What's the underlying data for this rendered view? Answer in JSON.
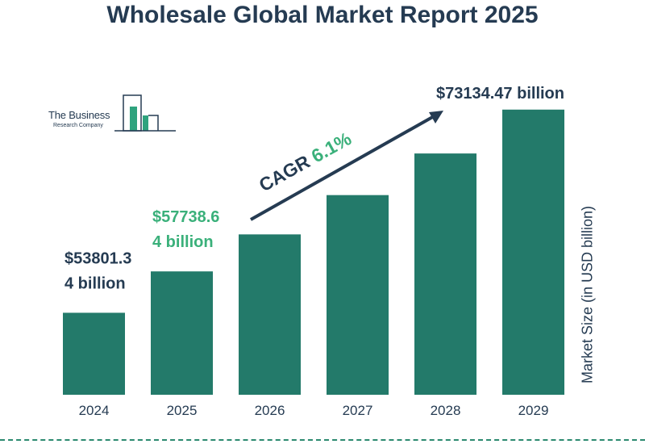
{
  "chart_data": {
    "type": "bar",
    "title": "Wholesale Global Market Report 2025",
    "ylabel": "Market Size (in USD billion)",
    "categories": [
      "2024",
      "2025",
      "2026",
      "2027",
      "2028",
      "2029"
    ],
    "values": [
      53801.34,
      57738.64,
      61260,
      65000,
      68960,
      73134.47
    ],
    "ylim": [
      46000,
      74500
    ],
    "bar_color": "#237a6a",
    "value_labels": [
      {
        "index": 0,
        "lines": [
          "$53801.3",
          "4 billion"
        ],
        "color": "#253b52"
      },
      {
        "index": 1,
        "lines": [
          "$57738.6",
          "4 billion"
        ],
        "color": "#3ab07a"
      },
      {
        "index": 5,
        "lines": [
          "$73134.47 billion"
        ],
        "color": "#253b52"
      }
    ],
    "annotation": {
      "prefix": "CAGR ",
      "value": "6.1%",
      "prefix_color": "#253b52",
      "value_color": "#3ab07a"
    },
    "grid": false,
    "legend": "none"
  },
  "logo": {
    "line1": "The Business",
    "line2": "Research Company",
    "icon": "building-bars-icon"
  }
}
